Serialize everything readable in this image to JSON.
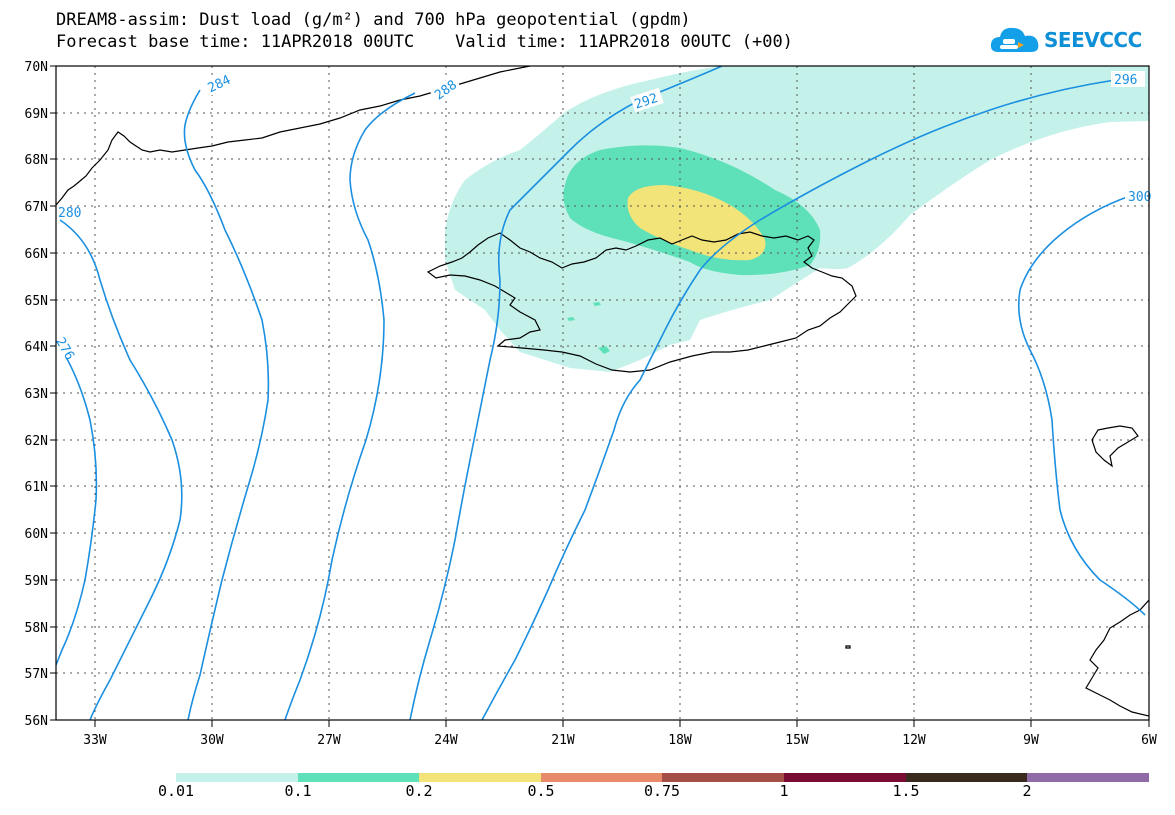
{
  "title": {
    "line1": "DREAM8-assim: Dust load (g/m²) and 700 hPa geopotential (gpdm)",
    "line2": "Forecast base time: 11APR2018 00UTC    Valid time: 11APR2018 00UTC (+00)"
  },
  "logo": {
    "text": "SEEVCCC",
    "icon": "cloud-icon",
    "color": "#0f8fd6"
  },
  "map": {
    "lat_labels": [
      "70N",
      "69N",
      "68N",
      "67N",
      "66N",
      "65N",
      "64N",
      "63N",
      "62N",
      "61N",
      "60N",
      "59N",
      "58N",
      "57N",
      "56N"
    ],
    "lon_labels": [
      "33W",
      "30W",
      "27W",
      "24W",
      "21W",
      "18W",
      "15W",
      "12W",
      "9W",
      "6W"
    ],
    "contour_labels": [
      "284",
      "288",
      "292",
      "296",
      "300",
      "276",
      "280"
    ],
    "contour_color": "#1b8fe0",
    "coastline_color": "#000000"
  },
  "colorbar": {
    "labels": [
      "0.01",
      "0.1",
      "0.2",
      "0.5",
      "0.75",
      "1",
      "1.5",
      "2"
    ],
    "colors": [
      "#c4f2ea",
      "#5ee0b8",
      "#f3e47a",
      "#e68a6a",
      "#a54e47",
      "#7a0b33",
      "#3a2a1e",
      "#8f6aa6"
    ]
  }
}
